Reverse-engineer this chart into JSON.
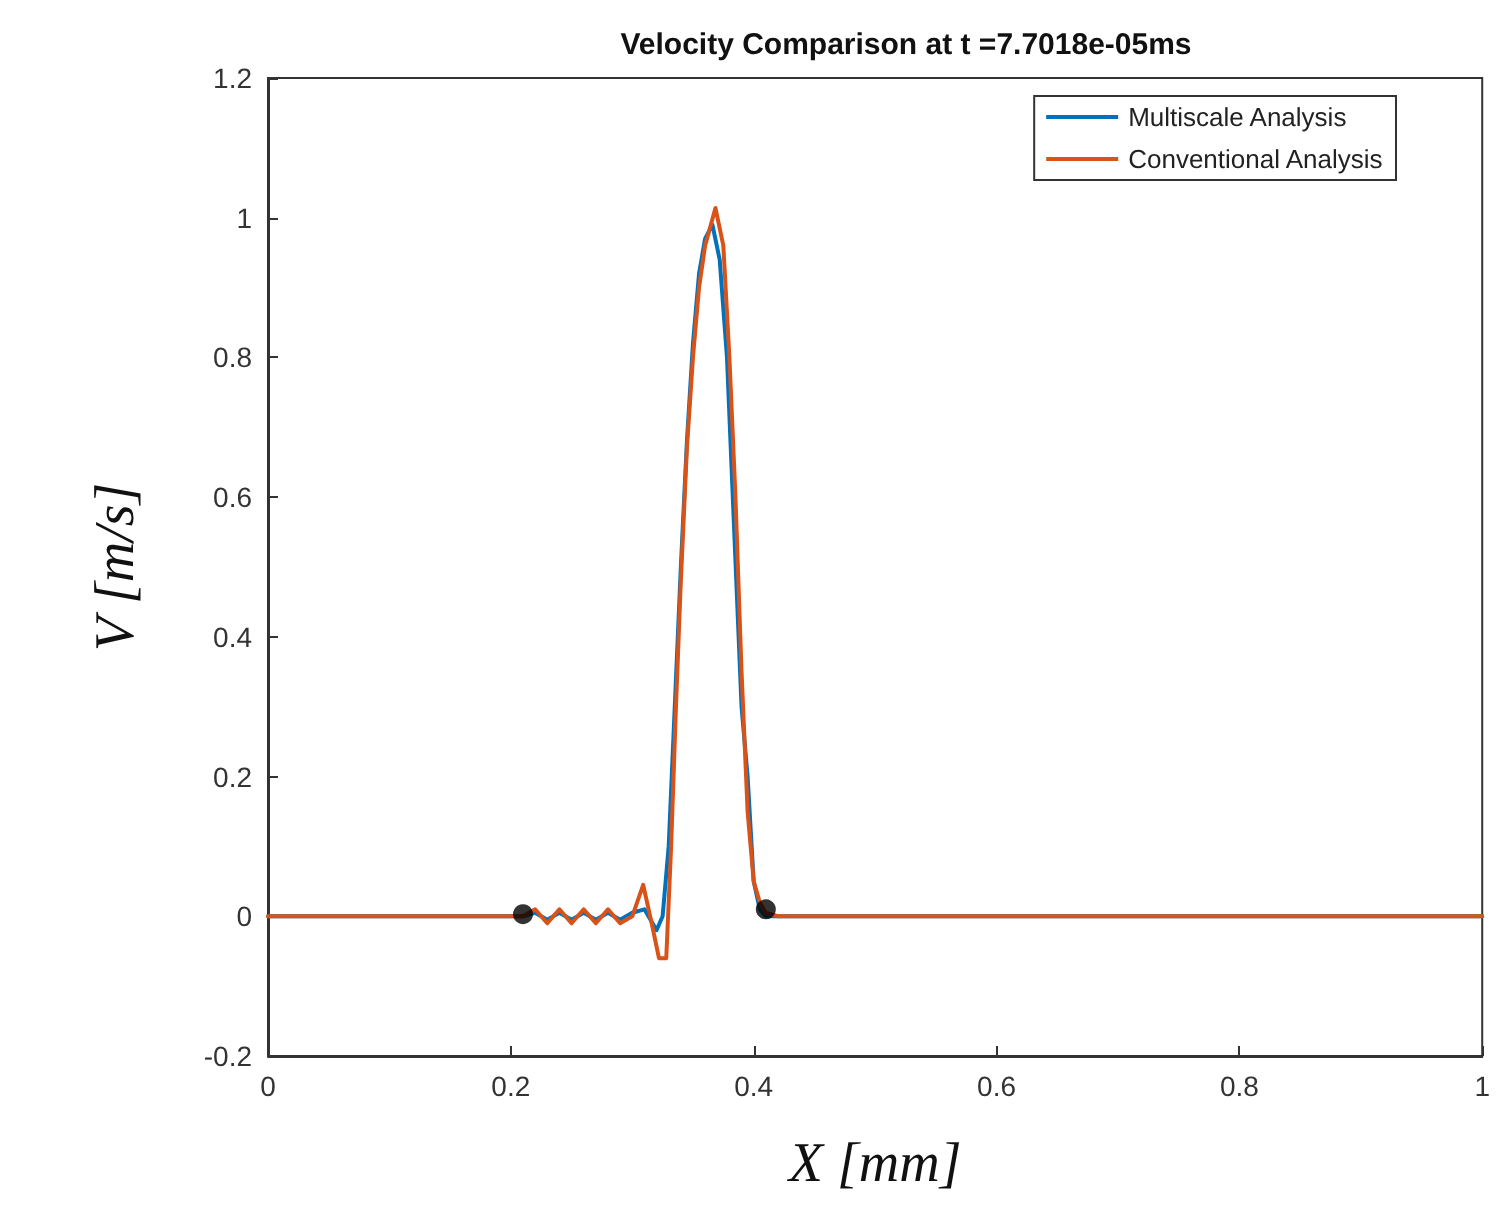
{
  "chart_data": {
    "type": "line",
    "title": "Velocity Comparison at t =7.7018e-05ms",
    "xlabel": "X [mm]",
    "ylabel": "V [m/s]",
    "xlim": [
      0,
      1
    ],
    "xticks": [
      0,
      0.2,
      0.4,
      0.6,
      0.8,
      1
    ],
    "ylim": [
      -0.2,
      1.2
    ],
    "yticks": [
      -0.2,
      0,
      0.2,
      0.4,
      0.6,
      0.8,
      1,
      1.2
    ],
    "grid": false,
    "legend": "top right",
    "marker": "none",
    "line_style": "solid",
    "series": [
      {
        "name": "Multiscale Analysis",
        "color": "#0072bd",
        "x": [
          0,
          0.2,
          0.21,
          0.22,
          0.23,
          0.24,
          0.25,
          0.26,
          0.27,
          0.28,
          0.29,
          0.3,
          0.31,
          0.32,
          0.325,
          0.33,
          0.335,
          0.34,
          0.345,
          0.35,
          0.355,
          0.36,
          0.366,
          0.372,
          0.378,
          0.384,
          0.39,
          0.395,
          0.4,
          0.405,
          0.41,
          0.42,
          1
        ],
        "values": [
          0,
          0,
          0,
          0.005,
          -0.005,
          0.005,
          -0.005,
          0.005,
          -0.005,
          0.005,
          -0.005,
          0.005,
          0.01,
          -0.02,
          0,
          0.1,
          0.3,
          0.5,
          0.68,
          0.82,
          0.92,
          0.97,
          0.99,
          0.94,
          0.8,
          0.55,
          0.3,
          0.2,
          0.05,
          0.01,
          0,
          0,
          0
        ]
      },
      {
        "name": "Conventional Analysis",
        "color": "#d95319",
        "x": [
          0,
          0.2,
          0.21,
          0.22,
          0.23,
          0.24,
          0.25,
          0.26,
          0.27,
          0.28,
          0.29,
          0.3,
          0.309,
          0.316,
          0.322,
          0.328,
          0.332,
          0.336,
          0.34,
          0.345,
          0.35,
          0.355,
          0.36,
          0.3685,
          0.375,
          0.38,
          0.385,
          0.39,
          0.395,
          0.4,
          0.405,
          0.41,
          0.42,
          1
        ],
        "values": [
          0,
          0,
          0,
          0.01,
          -0.01,
          0.01,
          -0.01,
          0.01,
          -0.01,
          0.01,
          -0.01,
          0,
          0.045,
          -0.01,
          -0.06,
          -0.06,
          0.1,
          0.3,
          0.48,
          0.67,
          0.8,
          0.9,
          0.96,
          1.014,
          0.96,
          0.8,
          0.6,
          0.35,
          0.15,
          0.05,
          0.02,
          0.005,
          0,
          0
        ]
      },
      {
        "type": "scatter",
        "color": "#000000",
        "marker": "circle",
        "x": [
          0.21,
          0.41
        ],
        "values": [
          0.003,
          0.01
        ]
      }
    ]
  }
}
